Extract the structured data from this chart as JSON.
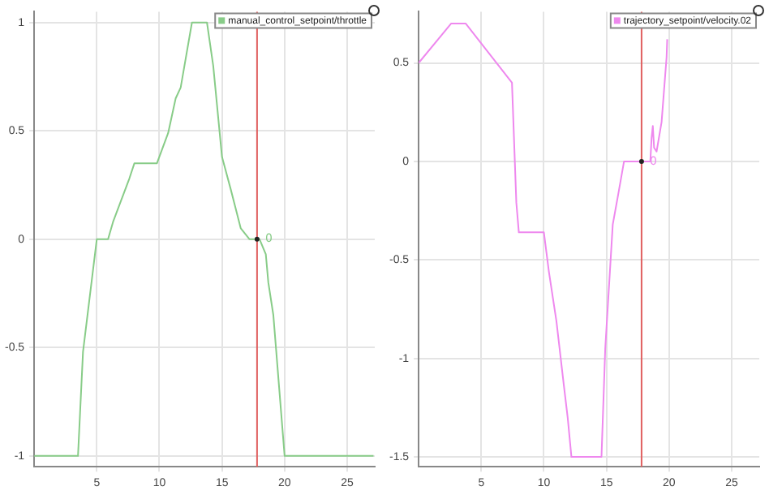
{
  "chart_data": [
    {
      "type": "line",
      "x": [
        0,
        3.5,
        3.9,
        5,
        5.9,
        6.3,
        7.6,
        8,
        8.9,
        9.8,
        10.7,
        11.3,
        11.7,
        12.6,
        13.8,
        14.3,
        15,
        15.7,
        16.5,
        17.2,
        18,
        18.5,
        18.7,
        19.1,
        20,
        27.1
      ],
      "series": [
        {
          "name": "manual_control_setpoint/throttle",
          "color": "#88cc88",
          "values": [
            -1,
            -1,
            -0.52,
            0,
            0,
            0.08,
            0.28,
            0.35,
            0.35,
            0.35,
            0.49,
            0.65,
            0.7,
            1,
            1,
            0.8,
            0.38,
            0.23,
            0.05,
            0,
            0,
            -0.07,
            -0.2,
            -0.35,
            -1,
            -1
          ]
        }
      ],
      "xlim": [
        0,
        27.2
      ],
      "xticks": [
        5,
        10,
        15,
        20,
        25
      ],
      "ylim": [
        -1.05,
        1.05
      ],
      "yticks": [
        -1,
        -0.5,
        0,
        0.5,
        1
      ],
      "grid": true,
      "legend": "top right",
      "marker": "none",
      "line_style": "solid",
      "ref_lines": [
        {
          "axis": "x",
          "value": 17.8,
          "color": "#e06060"
        }
      ],
      "annotations": [
        {
          "text": "0",
          "x": 17.8,
          "y": 0
        }
      ]
    },
    {
      "type": "line",
      "x": [
        0,
        2.6,
        3.75,
        7.45,
        7.8,
        8,
        10,
        10.4,
        11,
        11.6,
        11.9,
        12.2,
        14.6,
        14.9,
        15.5,
        15.9,
        16.4,
        17.8,
        18.5,
        18.6,
        18.7,
        18.8,
        19,
        19.4,
        19.8,
        19.85
      ],
      "series": [
        {
          "name": "trajectory_setpoint/velocity.02",
          "color": "#ee88ee",
          "values": [
            0.5,
            0.7,
            0.7,
            0.4,
            -0.21,
            -0.36,
            -0.36,
            -0.56,
            -0.81,
            -1.14,
            -1.3,
            -1.5,
            -1.5,
            -0.95,
            -0.32,
            -0.18,
            0,
            0,
            0,
            0.12,
            0.18,
            0.07,
            0.05,
            0.2,
            0.53,
            0.62
          ]
        }
      ],
      "xlim": [
        0,
        27.2
      ],
      "xticks": [
        5,
        10,
        15,
        20,
        25
      ],
      "ylim": [
        -1.55,
        0.76
      ],
      "yticks": [
        -1.5,
        -1,
        -0.5,
        0,
        0.5
      ],
      "grid": true,
      "legend": "top right",
      "marker": "none",
      "line_style": "solid",
      "ref_lines": [
        {
          "axis": "x",
          "value": 17.8,
          "color": "#e06060"
        }
      ],
      "annotations": [
        {
          "text": "0",
          "x": 17.8,
          "y": 0
        }
      ]
    }
  ]
}
